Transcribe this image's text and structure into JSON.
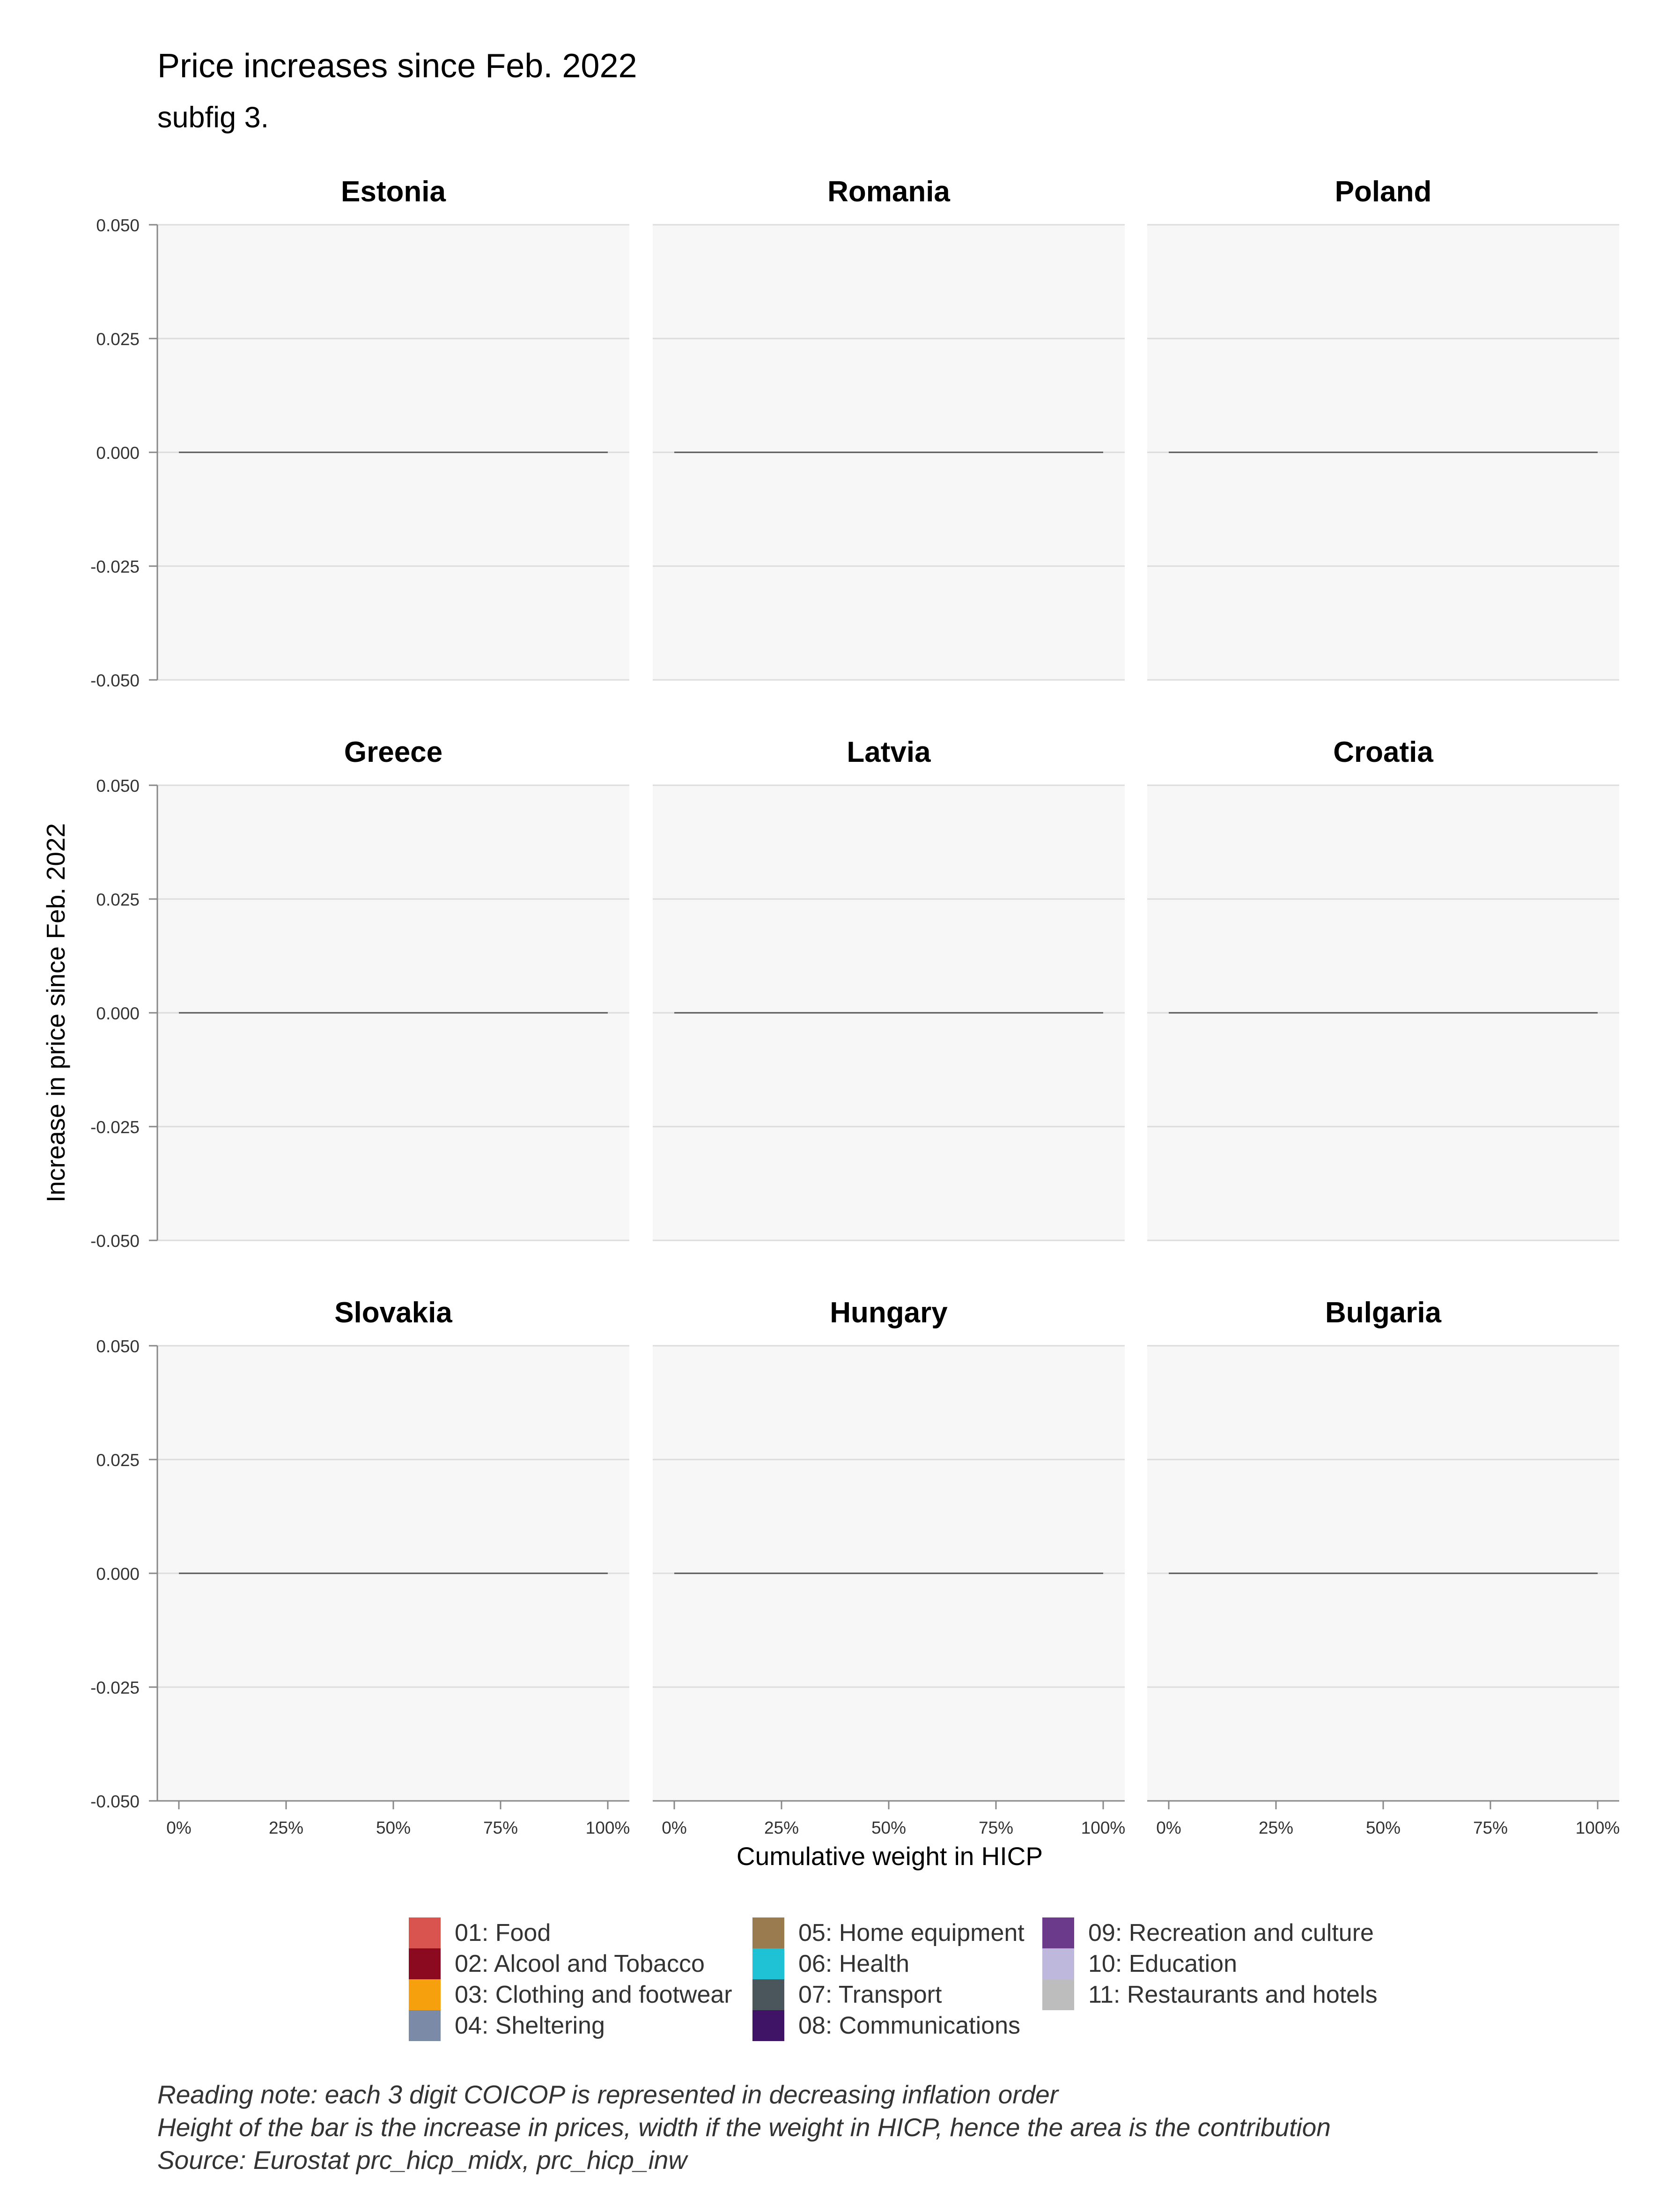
{
  "title": "Price increases since Feb. 2022",
  "subtitle": "subfig 3.",
  "notes": [
    "Reading note: each 3 digit COICOP is represented in decreasing inflation order",
    "Height of the bar is the increase in prices, width if the weight in HICP, hence the area is the contribution",
    "Source: Eurostat prc_hicp_midx, prc_hicp_inw"
  ],
  "legend": [
    {
      "label": "01: Food",
      "color": "#d9534f"
    },
    {
      "label": "02: Alcool and Tobacco",
      "color": "#8b0a1f"
    },
    {
      "label": "03: Clothing and footwear",
      "color": "#f5a00c"
    },
    {
      "label": "04: Sheltering",
      "color": "#7b8aa6"
    },
    {
      "label": "05: Home equipment",
      "color": "#9a7b4f"
    },
    {
      "label": "06: Health",
      "color": "#1fc1d4"
    },
    {
      "label": "07: Transport",
      "color": "#4a555c"
    },
    {
      "label": "08: Communications",
      "color": "#3f1466"
    },
    {
      "label": "09: Recreation and culture",
      "color": "#6b3a8a"
    },
    {
      "label": "10: Education",
      "color": "#bdb8dc"
    },
    {
      "label": "11: Restaurants and hotels",
      "color": "#bdbdbd"
    }
  ],
  "chart_data": {
    "type": "bar",
    "xlabel": "Cumulative weight in HICP",
    "ylabel": "Increase in price since Feb. 2022",
    "xlim": [
      0,
      1
    ],
    "ylim": [
      -0.05,
      0.05
    ],
    "x_ticks": [
      "0%",
      "25%",
      "50%",
      "75%",
      "100%"
    ],
    "y_ticks": [
      "0.050",
      "0.025",
      "0.000",
      "-0.025",
      "-0.050"
    ],
    "grid": true,
    "facets": [
      {
        "name": "Estonia",
        "values": [
          0
        ]
      },
      {
        "name": "Romania",
        "values": [
          0
        ]
      },
      {
        "name": "Poland",
        "values": [
          0
        ]
      },
      {
        "name": "Greece",
        "values": [
          0
        ]
      },
      {
        "name": "Latvia",
        "values": [
          0
        ]
      },
      {
        "name": "Croatia",
        "values": [
          0
        ]
      },
      {
        "name": "Slovakia",
        "values": [
          0
        ]
      },
      {
        "name": "Hungary",
        "values": [
          0
        ]
      },
      {
        "name": "Bulgaria",
        "values": [
          0
        ]
      }
    ]
  }
}
